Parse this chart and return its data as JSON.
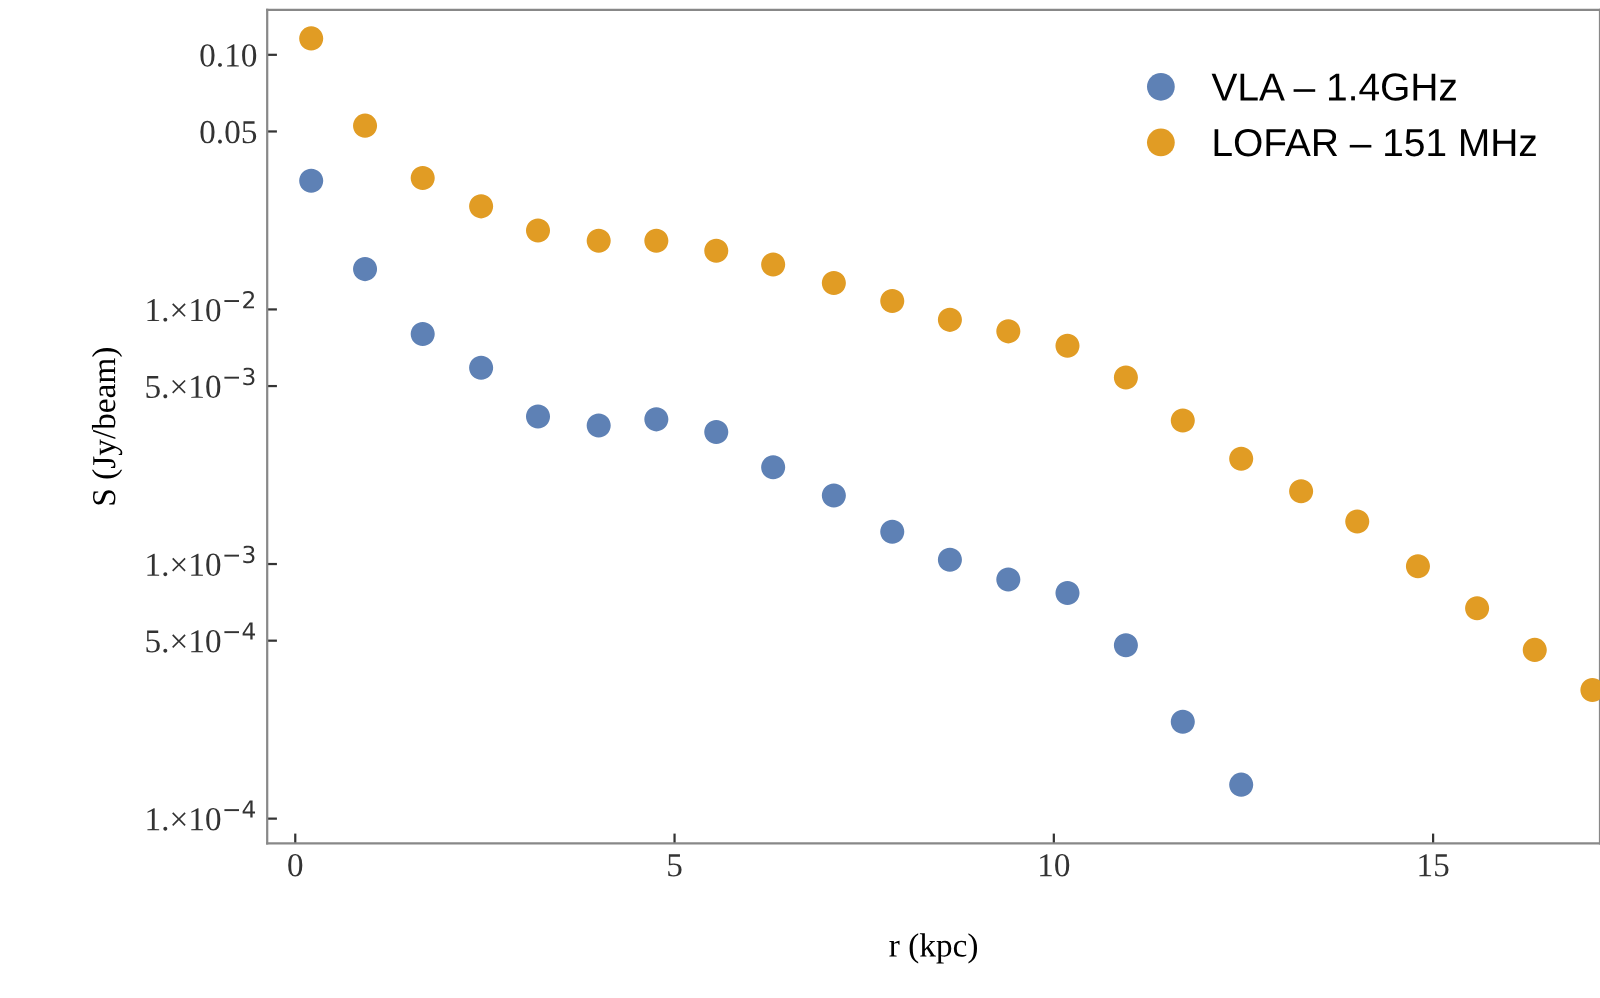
{
  "chart_data": {
    "type": "scatter",
    "xlabel": "r (kpc)",
    "ylabel": "S (Jy/beam)",
    "log": "y",
    "marker": "circle",
    "legend": "top right",
    "grid": false,
    "xlim": [
      -0.37,
      17.2
    ],
    "xticks": [
      0,
      5,
      10,
      15
    ],
    "ylim": [
      8e-05,
      0.15
    ],
    "yticks": [
      {
        "value": 0.1,
        "label": "0.10"
      },
      {
        "value": 0.05,
        "label": "0.05"
      },
      {
        "value": 0.01,
        "label": "1.×10$^{−2}$"
      },
      {
        "value": 0.005,
        "label": "5.×10$^{−3}$"
      },
      {
        "value": 0.001,
        "label": "1.×10$^{−3}$"
      },
      {
        "value": 0.0005,
        "label": "5.×10$^{−4}$"
      },
      {
        "value": 0.0001,
        "label": "1.×10$^{−4}$"
      }
    ],
    "series": [
      {
        "name": "VLA – 1.4GHz",
        "color": "#5e81b5",
        "x": [
          0.21,
          0.92,
          1.68,
          2.45,
          3.2,
          4.0,
          4.76,
          5.55,
          6.3,
          7.1,
          7.87,
          8.63,
          9.4,
          10.18,
          10.95,
          11.7,
          12.47
        ],
        "values": [
          0.032,
          0.0144,
          0.008,
          0.0059,
          0.0038,
          0.0035,
          0.0037,
          0.0033,
          0.0024,
          0.00186,
          0.00134,
          0.00104,
          0.00087,
          0.00077,
          0.00048,
          0.00024,
          0.000136
        ]
      },
      {
        "name": "LOFAR – 151 MHz",
        "color": "#e19c24",
        "x": [
          0.21,
          0.92,
          1.68,
          2.45,
          3.2,
          4.0,
          4.76,
          5.55,
          6.3,
          7.1,
          7.87,
          8.63,
          9.4,
          10.18,
          10.95,
          11.7,
          12.47,
          13.26,
          14.0,
          14.8,
          15.58,
          16.34,
          17.1
        ],
        "values": [
          0.116,
          0.0527,
          0.0328,
          0.0254,
          0.0204,
          0.0186,
          0.0186,
          0.017,
          0.015,
          0.0127,
          0.0108,
          0.0091,
          0.0082,
          0.0072,
          0.0054,
          0.00366,
          0.00259,
          0.00193,
          0.00147,
          0.00098,
          0.00067,
          0.00046,
          0.00032
        ]
      }
    ]
  }
}
